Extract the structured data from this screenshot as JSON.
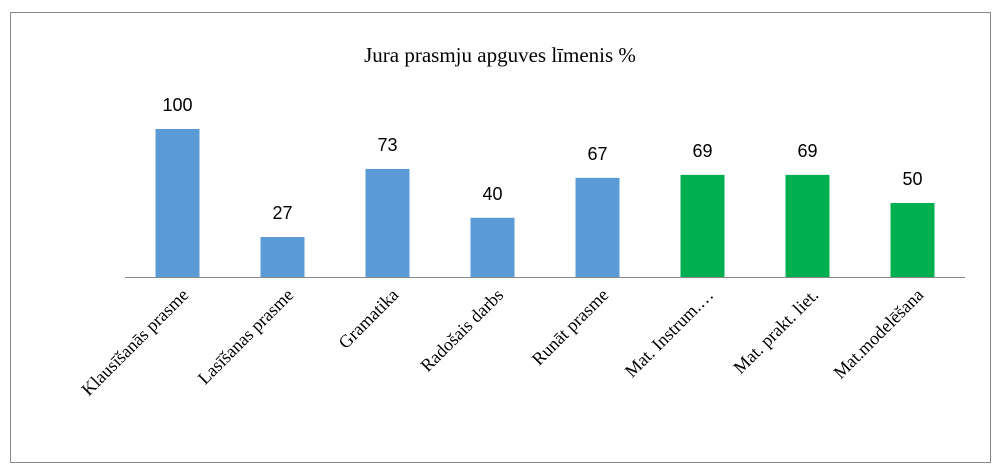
{
  "chart_data": {
    "type": "bar",
    "title": "Jura prasmju apguves līmenis %",
    "categories": [
      "Klausīšanās prasme",
      "Lasīšanas prasme",
      "Gramatika",
      "Radošais darbs",
      "Runāt prasme",
      "Mat. Instrum.…",
      "Mat. prakt. liet.",
      "Mat.modelēšana"
    ],
    "values": [
      100,
      27,
      73,
      40,
      67,
      69,
      69,
      50
    ],
    "colors": [
      "#5b9bd5",
      "#5b9bd5",
      "#5b9bd5",
      "#5b9bd5",
      "#5b9bd5",
      "#00b050",
      "#00b050",
      "#00b050"
    ]
  }
}
